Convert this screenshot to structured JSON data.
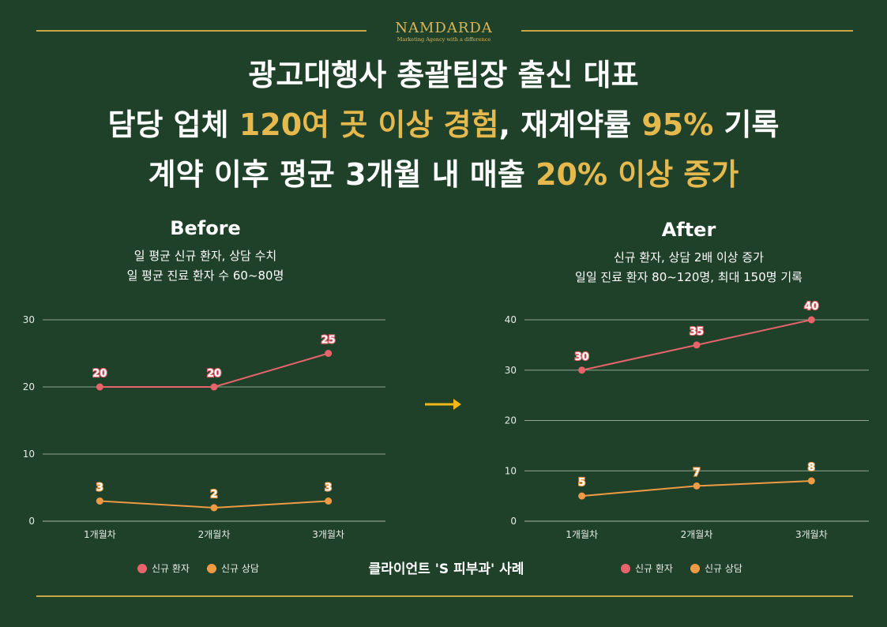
{
  "brand": {
    "name": "NAMDARDA",
    "tagline": "Marketing Agency with a difference"
  },
  "headline": {
    "line1": {
      "text": "광고대행사 총괄팀장 출신 대표"
    },
    "line2": {
      "p1": "담당 업체 ",
      "g1": "120여 곳 이상 경험",
      "p2": ", 재계약률 ",
      "g2": "95%",
      "p3": " 기록"
    },
    "line3": {
      "p1": "계약 이후 평균 3개월 내 매출 ",
      "g1": "20% 이상 증가"
    }
  },
  "before": {
    "title": "Before",
    "sub1": "일 평균 신규 환자, 상담 수치",
    "sub2": "일 평균 진료 환자 수 60~80명"
  },
  "after": {
    "title": "After",
    "sub1": "신규 환자, 상담 2배 이상 증가",
    "sub2": "일일 진료 환자 80~120명, 최대 150명 기록"
  },
  "arrow_icon": "right-arrow-icon",
  "caption": "클라이언트 'S 피부과' 사례",
  "colors": {
    "background": "#1f4129",
    "gold": "#e6b94e",
    "patients": "#e8646c",
    "consults": "#ef9a45",
    "grid": "#8fa592"
  },
  "chart_data": [
    {
      "type": "line",
      "categories": [
        "1개월차",
        "2개월차",
        "3개월차"
      ],
      "ylim": [
        0,
        30
      ],
      "yticks": [
        0,
        10,
        20,
        30
      ],
      "grid": true,
      "legend_position": "bottom",
      "series": [
        {
          "name": "신규 환자",
          "values": [
            20,
            20,
            25
          ],
          "color": "#e8646c"
        },
        {
          "name": "신규 상담",
          "values": [
            3,
            2,
            3
          ],
          "color": "#ef9a45"
        }
      ]
    },
    {
      "type": "line",
      "categories": [
        "1개월차",
        "2개월차",
        "3개월차"
      ],
      "ylim": [
        0,
        40
      ],
      "yticks": [
        0,
        10,
        20,
        30,
        40
      ],
      "grid": true,
      "legend_position": "bottom",
      "series": [
        {
          "name": "신규 환자",
          "values": [
            30,
            35,
            40
          ],
          "color": "#e8646c"
        },
        {
          "name": "신규 상담",
          "values": [
            5,
            7,
            8
          ],
          "color": "#ef9a45"
        }
      ]
    }
  ]
}
